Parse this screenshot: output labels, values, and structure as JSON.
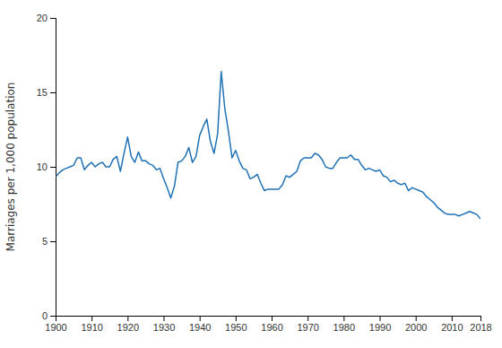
{
  "chart_data": {
    "type": "line",
    "ylabel": "Marriages per 1,000 population",
    "x": [
      1900,
      1901,
      1902,
      1903,
      1904,
      1905,
      1906,
      1907,
      1908,
      1909,
      1910,
      1911,
      1912,
      1913,
      1914,
      1915,
      1916,
      1917,
      1918,
      1919,
      1920,
      1921,
      1922,
      1923,
      1924,
      1925,
      1926,
      1927,
      1928,
      1929,
      1930,
      1931,
      1932,
      1933,
      1934,
      1935,
      1936,
      1937,
      1938,
      1939,
      1940,
      1941,
      1942,
      1943,
      1944,
      1945,
      1946,
      1947,
      1948,
      1949,
      1950,
      1951,
      1952,
      1953,
      1954,
      1955,
      1956,
      1957,
      1958,
      1959,
      1960,
      1961,
      1962,
      1963,
      1964,
      1965,
      1966,
      1967,
      1968,
      1969,
      1970,
      1971,
      1972,
      1973,
      1974,
      1975,
      1976,
      1977,
      1978,
      1979,
      1980,
      1981,
      1982,
      1983,
      1984,
      1985,
      1986,
      1987,
      1988,
      1989,
      1990,
      1991,
      1992,
      1993,
      1994,
      1995,
      1996,
      1997,
      1998,
      1999,
      2000,
      2001,
      2002,
      2003,
      2004,
      2005,
      2006,
      2007,
      2008,
      2009,
      2010,
      2011,
      2012,
      2013,
      2014,
      2015,
      2016,
      2017,
      2018
    ],
    "values": [
      9.3,
      9.6,
      9.8,
      9.9,
      10.0,
      10.1,
      10.6,
      10.6,
      9.8,
      10.1,
      10.3,
      10.0,
      10.2,
      10.3,
      10.0,
      10.0,
      10.5,
      10.7,
      9.7,
      10.9,
      12.0,
      10.7,
      10.3,
      11.0,
      10.4,
      10.4,
      10.2,
      10.1,
      9.8,
      9.9,
      9.2,
      8.6,
      7.9,
      8.7,
      10.3,
      10.4,
      10.7,
      11.3,
      10.3,
      10.7,
      12.1,
      12.7,
      13.2,
      11.7,
      10.9,
      12.2,
      16.4,
      13.9,
      12.4,
      10.6,
      11.1,
      10.4,
      9.9,
      9.8,
      9.2,
      9.3,
      9.5,
      8.9,
      8.4,
      8.5,
      8.5,
      8.5,
      8.5,
      8.8,
      9.4,
      9.3,
      9.5,
      9.7,
      10.4,
      10.6,
      10.6,
      10.6,
      10.9,
      10.8,
      10.5,
      10.0,
      9.9,
      9.9,
      10.3,
      10.6,
      10.6,
      10.6,
      10.8,
      10.5,
      10.5,
      10.1,
      9.8,
      9.9,
      9.8,
      9.7,
      9.8,
      9.4,
      9.3,
      9.0,
      9.1,
      8.9,
      8.8,
      8.9,
      8.4,
      8.6,
      8.5,
      8.4,
      8.3,
      8.0,
      7.8,
      7.6,
      7.3,
      7.1,
      6.9,
      6.8,
      6.8,
      6.8,
      6.7,
      6.8,
      6.9,
      7.0,
      6.9,
      6.8,
      6.5
    ],
    "color": "#2171b5",
    "xlim": [
      1900,
      2018
    ],
    "ylim": [
      0,
      20
    ],
    "xticks": [
      1900,
      1910,
      1920,
      1930,
      1940,
      1950,
      1960,
      1970,
      1980,
      1990,
      2000,
      2010,
      2018
    ],
    "yticks": [
      0,
      5,
      10,
      15,
      20
    ],
    "grid": false
  }
}
